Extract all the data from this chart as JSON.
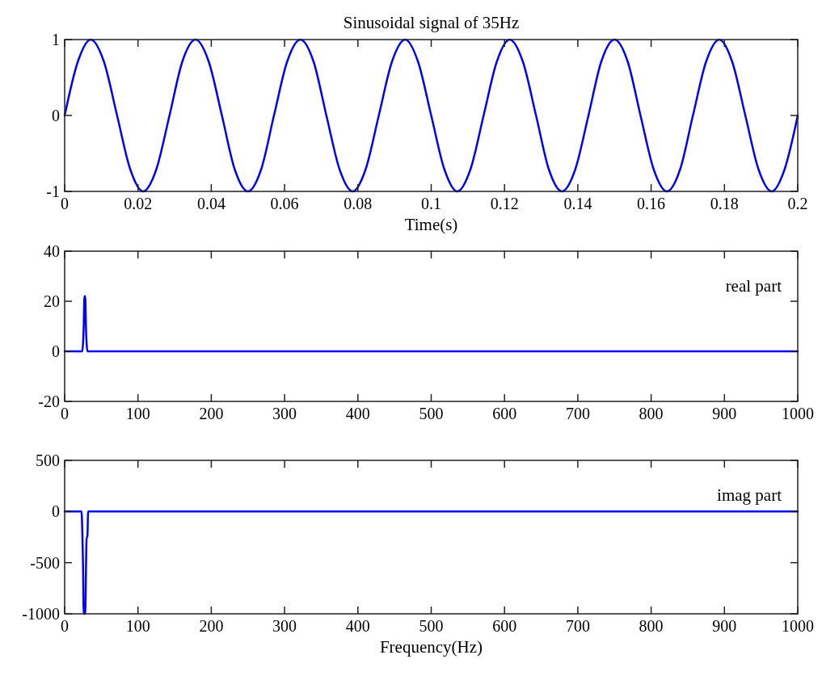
{
  "chart_data": [
    {
      "type": "line",
      "title": "Sinusoidal signal of 35Hz",
      "xlabel": "Time(s)",
      "color": "#0000ff",
      "xlim": [
        0,
        0.2
      ],
      "ylim": [
        -1,
        1
      ],
      "xticks": [
        0,
        0.02,
        0.04,
        0.06,
        0.08,
        0.1,
        0.12,
        0.14,
        0.16,
        0.18,
        0.2
      ],
      "yticks": [
        -1,
        0,
        1
      ],
      "x": [
        0,
        0.0036,
        0.0071,
        0.0107,
        0.0143,
        0.0179,
        0.0214,
        0.025,
        0.0286,
        0.0321,
        0.0357,
        0.0393,
        0.0429,
        0.0464,
        0.05,
        0.0536,
        0.0571,
        0.0607,
        0.0643,
        0.0679,
        0.0714,
        0.075,
        0.0786,
        0.0821,
        0.0857,
        0.0893,
        0.0929,
        0.0964,
        0.1,
        0.1036,
        0.1071,
        0.1107,
        0.1143,
        0.1179,
        0.1214,
        0.125,
        0.1286,
        0.1321,
        0.1357,
        0.1393,
        0.1429,
        0.1464,
        0.15,
        0.1536,
        0.1571,
        0.1607,
        0.1643,
        0.1679,
        0.1714,
        0.175,
        0.1786,
        0.1821,
        0.1857,
        0.1893,
        0.1929,
        0.1964,
        0.2
      ],
      "values": [
        0,
        0.71,
        1,
        0.71,
        0,
        -0.71,
        -1,
        -0.71,
        0,
        0.71,
        1,
        0.71,
        0,
        -0.71,
        -1,
        -0.71,
        0,
        0.71,
        1,
        0.71,
        0,
        -0.71,
        -1,
        -0.71,
        0,
        0.71,
        1,
        0.71,
        0,
        -0.71,
        -1,
        -0.71,
        0,
        0.71,
        1,
        0.71,
        0,
        -0.71,
        -1,
        -0.71,
        0,
        0.71,
        1,
        0.71,
        0,
        -0.71,
        -1,
        -0.71,
        0,
        0.71,
        1,
        0.71,
        0,
        -0.71,
        -1,
        -0.71,
        0
      ]
    },
    {
      "type": "line",
      "annotations": [
        "real part"
      ],
      "color": "#0000ff",
      "xlim": [
        0,
        1000
      ],
      "ylim": [
        -20,
        40
      ],
      "xticks": [
        0,
        100,
        200,
        300,
        400,
        500,
        600,
        700,
        800,
        900,
        1000
      ],
      "yticks": [
        -20,
        0,
        20,
        40
      ],
      "x": [
        0,
        24,
        25,
        26,
        27,
        28,
        29,
        30,
        31,
        1000
      ],
      "values": [
        0,
        0,
        3,
        10,
        22,
        22,
        10,
        3,
        0,
        0
      ]
    },
    {
      "type": "line",
      "annotations": [
        "imag part"
      ],
      "xlabel": "Frequency(Hz)",
      "color": "#0000ff",
      "xlim": [
        0,
        1000
      ],
      "ylim": [
        -1000,
        500
      ],
      "xticks": [
        0,
        100,
        200,
        300,
        400,
        500,
        600,
        700,
        800,
        900,
        1000
      ],
      "yticks": [
        -1000,
        -500,
        0,
        500
      ],
      "x": [
        0,
        23,
        24,
        25,
        26,
        27,
        28,
        29,
        30,
        31,
        32,
        1000
      ],
      "values": [
        0,
        0,
        -170,
        -500,
        -1000,
        -1000,
        -1000,
        -600,
        -250,
        -250,
        0,
        0
      ]
    }
  ]
}
